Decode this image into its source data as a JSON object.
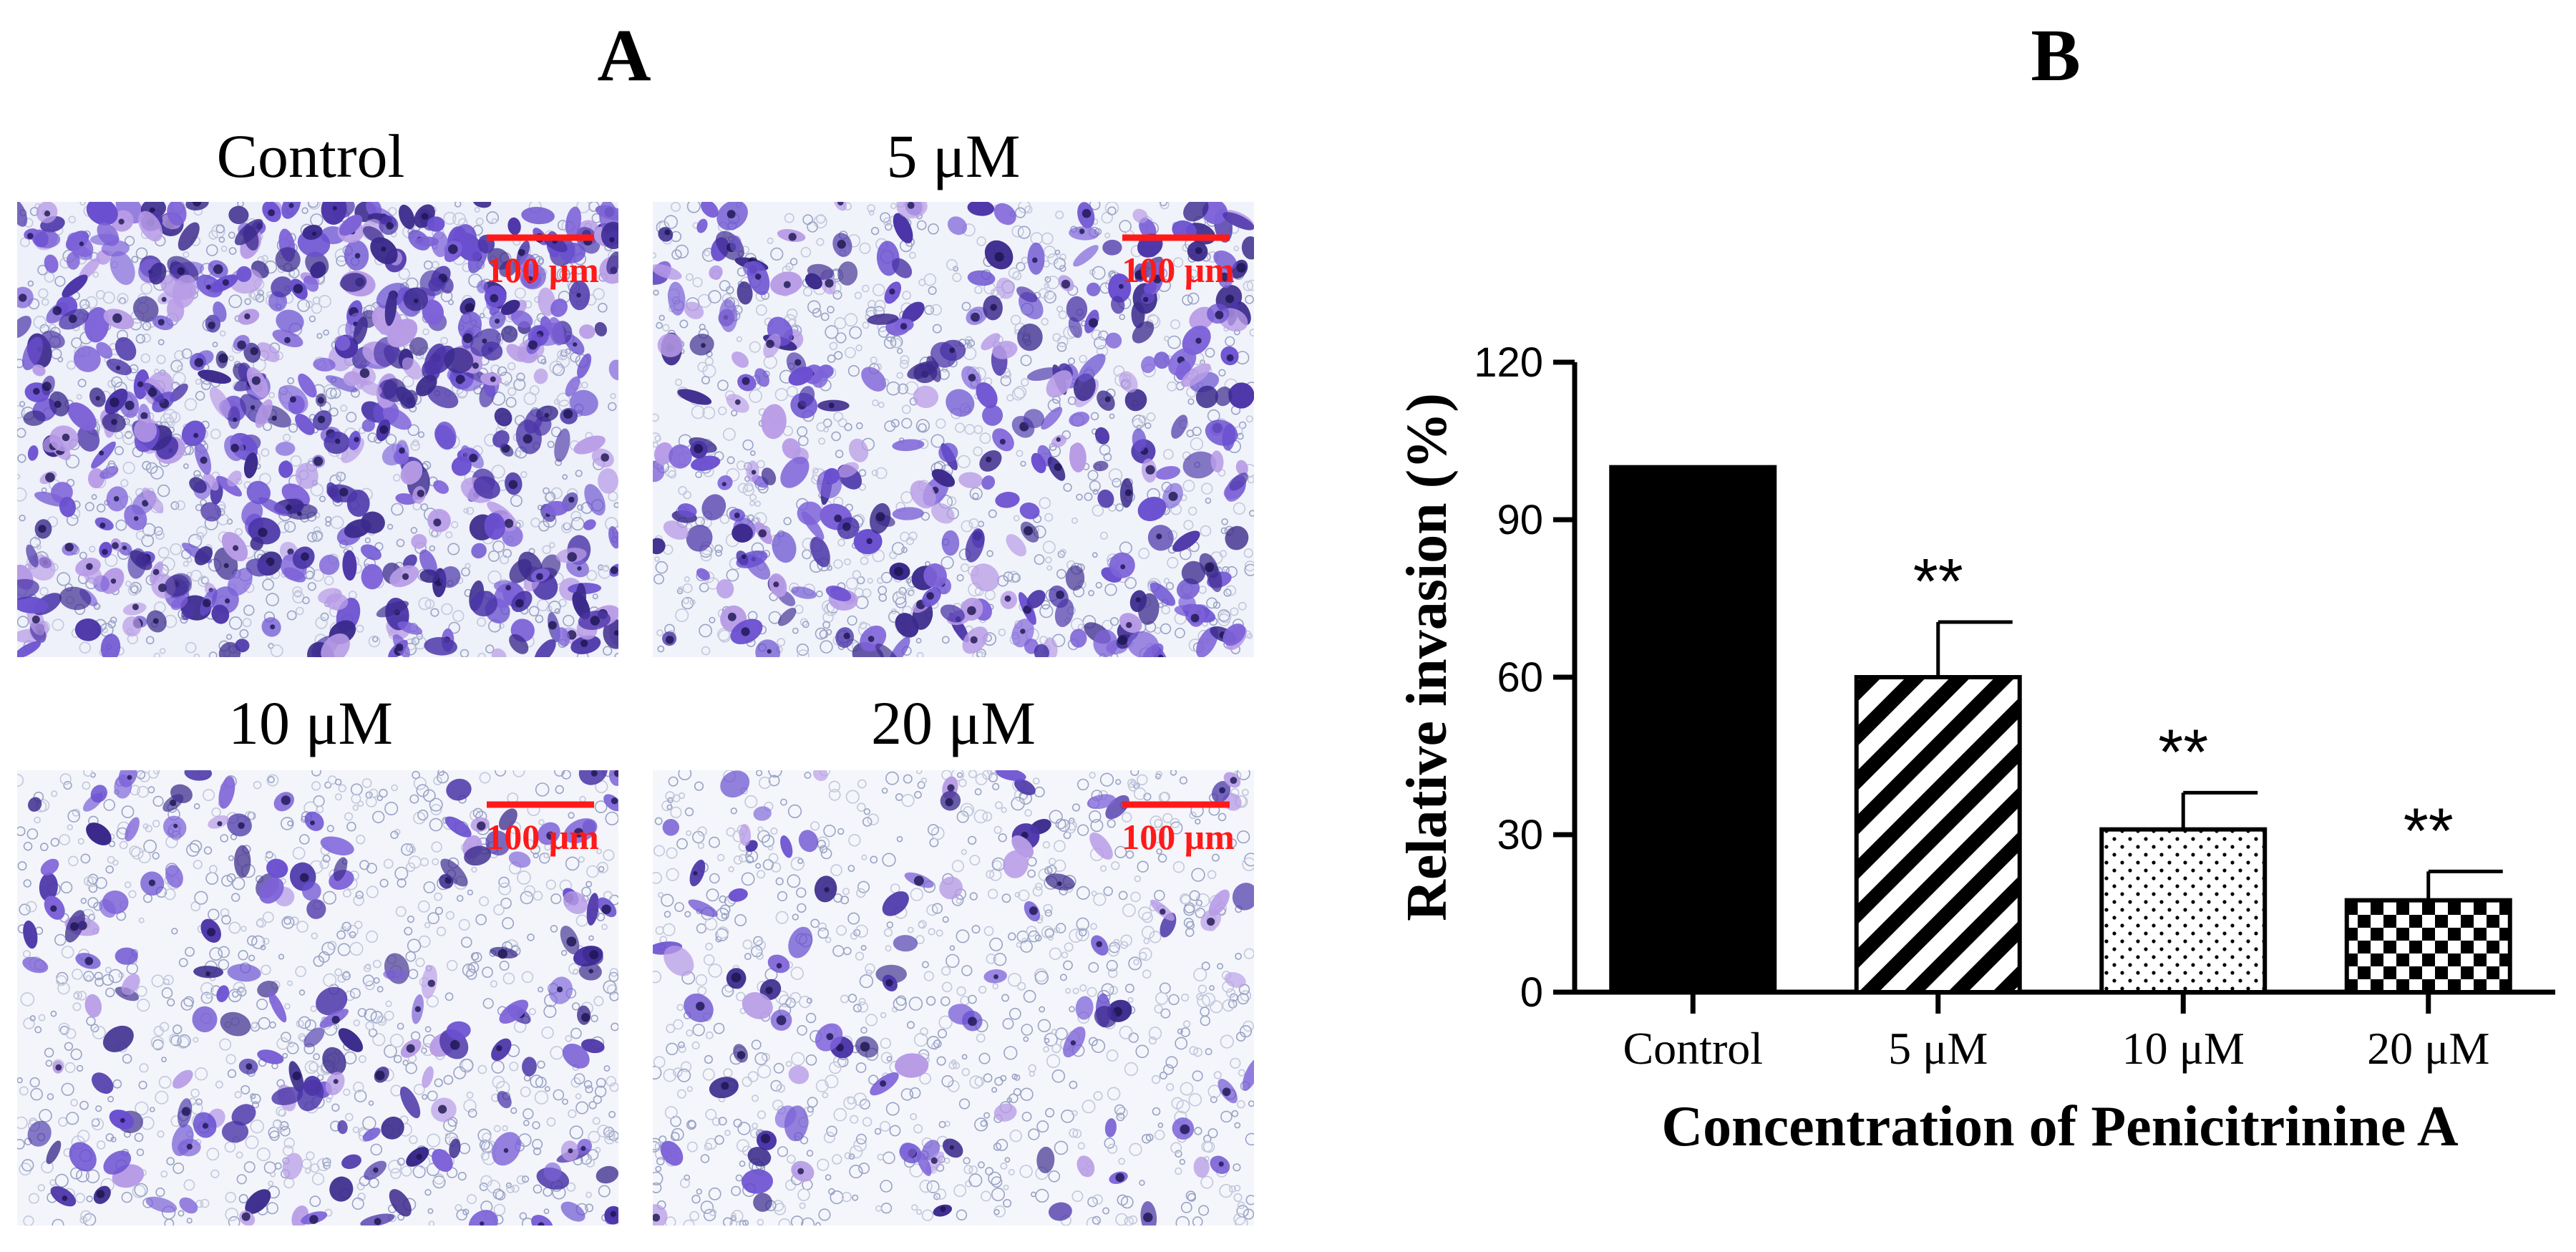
{
  "panels": {
    "a_letter": "A",
    "b_letter": "B"
  },
  "micrographs": [
    {
      "label": "Control",
      "scale_label": "100 μm",
      "cell_density": 1.0
    },
    {
      "label": "5 μM",
      "scale_label": "100 μm",
      "cell_density": 0.6
    },
    {
      "label": "10 μM",
      "scale_label": "100 μm",
      "cell_density": 0.31
    },
    {
      "label": "20 μM",
      "scale_label": "100 μm",
      "cell_density": 0.18
    }
  ],
  "chart_data": {
    "type": "bar",
    "categories": [
      "Control",
      "5 μM",
      "10 μM",
      "20 μM"
    ],
    "values": [
      100,
      60,
      31,
      17.5
    ],
    "errors": [
      0,
      10.5,
      7,
      5.5
    ],
    "significance": [
      "",
      "**",
      "**",
      "**"
    ],
    "patterns": [
      "solid",
      "diagonal-stripes",
      "dots",
      "checkerboard"
    ],
    "title": "",
    "xlabel": "Concentration of Penicitrinine A",
    "ylabel": "Relative invasion (%)",
    "ylim": [
      0,
      120
    ],
    "yticks": [
      0,
      30,
      60,
      90,
      120
    ],
    "grid": false
  },
  "colors": {
    "stain_dark": "#3b2a8c",
    "stain_mid": "#6a4fd0",
    "stain_light": "#b79be6",
    "scale_bar": "#ff1a1a",
    "bar_fill": "#000000",
    "background": "#ffffff"
  }
}
